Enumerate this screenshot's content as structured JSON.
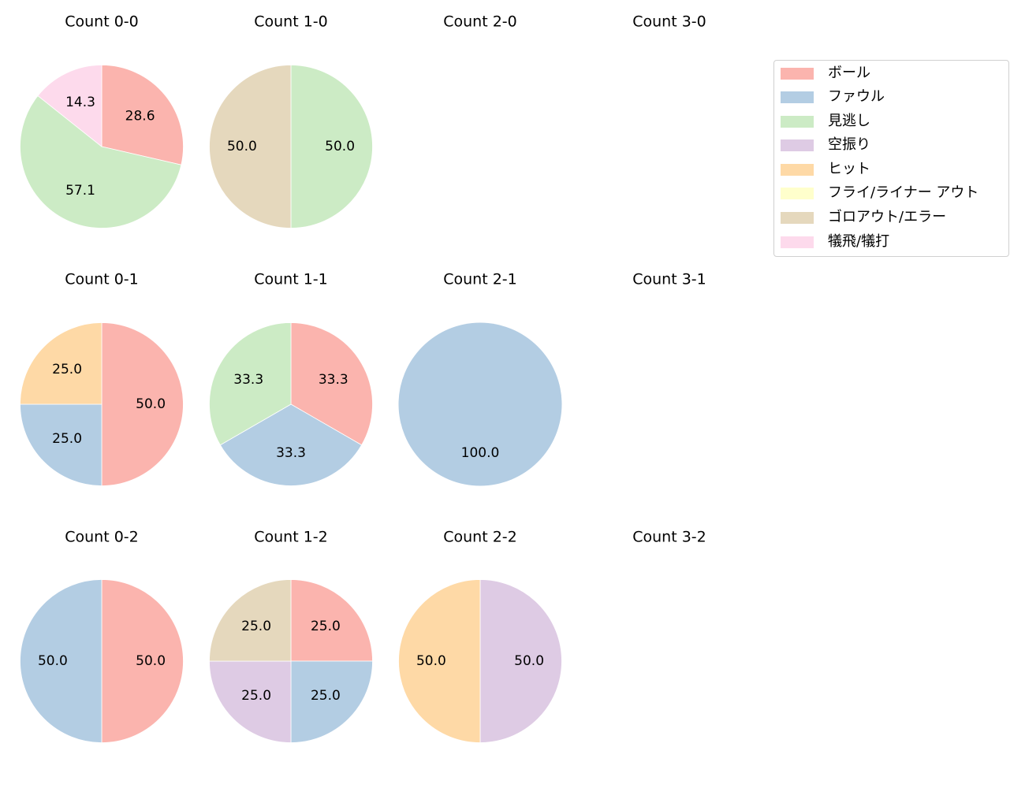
{
  "chart_data": {
    "type": "pie",
    "layout": {
      "rows": 3,
      "cols": 4,
      "start_angle": 90,
      "direction": "clockwise",
      "label_format": "%.1f"
    },
    "legend": {
      "position": "upper right",
      "entries": [
        {
          "label": "ボール",
          "color": "#fbb4ae"
        },
        {
          "label": "ファウル",
          "color": "#b3cde3"
        },
        {
          "label": "見逃し",
          "color": "#ccebc5"
        },
        {
          "label": "空振り",
          "color": "#decbe4"
        },
        {
          "label": "ヒット",
          "color": "#fed9a6"
        },
        {
          "label": "フライ/ライナー アウト",
          "color": "#ffffcc"
        },
        {
          "label": "ゴロアウト/エラー",
          "color": "#e5d8bd"
        },
        {
          "label": "犠飛/犠打",
          "color": "#fddaec"
        }
      ]
    },
    "subplots": [
      {
        "title": "Count 0-0",
        "row": 0,
        "col": 0,
        "slices": [
          {
            "label": "ボール",
            "value": 28.6
          },
          {
            "label": "見逃し",
            "value": 57.1
          },
          {
            "label": "犠飛/犠打",
            "value": 14.3
          }
        ]
      },
      {
        "title": "Count 1-0",
        "row": 0,
        "col": 1,
        "slices": [
          {
            "label": "見逃し",
            "value": 50.0
          },
          {
            "label": "ゴロアウト/エラー",
            "value": 50.0
          }
        ]
      },
      {
        "title": "Count 2-0",
        "row": 0,
        "col": 2,
        "slices": []
      },
      {
        "title": "Count 3-0",
        "row": 0,
        "col": 3,
        "slices": []
      },
      {
        "title": "Count 0-1",
        "row": 1,
        "col": 0,
        "slices": [
          {
            "label": "ボール",
            "value": 50.0
          },
          {
            "label": "ファウル",
            "value": 25.0
          },
          {
            "label": "ヒット",
            "value": 25.0
          }
        ]
      },
      {
        "title": "Count 1-1",
        "row": 1,
        "col": 1,
        "slices": [
          {
            "label": "ボール",
            "value": 33.3
          },
          {
            "label": "ファウル",
            "value": 33.3
          },
          {
            "label": "見逃し",
            "value": 33.3
          }
        ]
      },
      {
        "title": "Count 2-1",
        "row": 1,
        "col": 2,
        "slices": [
          {
            "label": "ファウル",
            "value": 100.0
          }
        ]
      },
      {
        "title": "Count 3-1",
        "row": 1,
        "col": 3,
        "slices": []
      },
      {
        "title": "Count 0-2",
        "row": 2,
        "col": 0,
        "slices": [
          {
            "label": "ボール",
            "value": 50.0
          },
          {
            "label": "ファウル",
            "value": 50.0
          }
        ]
      },
      {
        "title": "Count 1-2",
        "row": 2,
        "col": 1,
        "slices": [
          {
            "label": "ボール",
            "value": 25.0
          },
          {
            "label": "ファウル",
            "value": 25.0
          },
          {
            "label": "空振り",
            "value": 25.0
          },
          {
            "label": "ゴロアウト/エラー",
            "value": 25.0
          }
        ]
      },
      {
        "title": "Count 2-2",
        "row": 2,
        "col": 2,
        "slices": [
          {
            "label": "空振り",
            "value": 50.0
          },
          {
            "label": "ヒット",
            "value": 50.0
          }
        ]
      },
      {
        "title": "Count 3-2",
        "row": 2,
        "col": 3,
        "slices": []
      }
    ]
  }
}
